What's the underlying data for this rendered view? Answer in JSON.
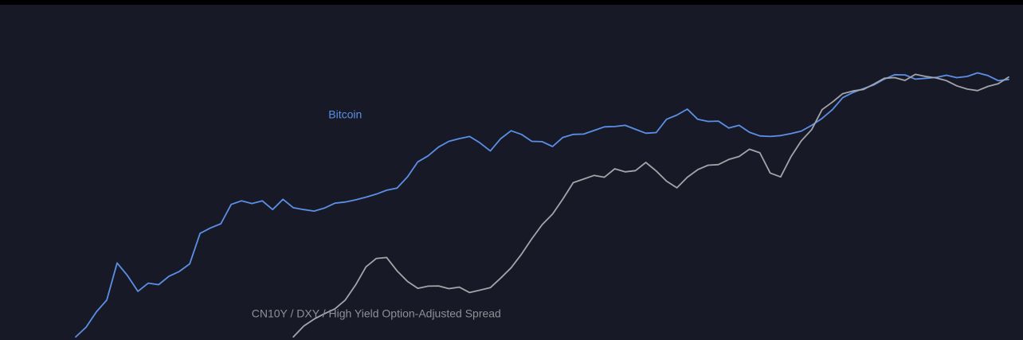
{
  "chart_data": {
    "type": "line",
    "title": "",
    "xlabel": "",
    "ylabel": "",
    "x_axis_visible": false,
    "y_axis_visible": false,
    "grid": false,
    "legend": "none",
    "background_color": "#171a26",
    "x": [
      0,
      1,
      2,
      3,
      4,
      5,
      6,
      7,
      8,
      9,
      10,
      11,
      12,
      13,
      14,
      15,
      16,
      17,
      18,
      19,
      20,
      21,
      22,
      23,
      24,
      25,
      26,
      27,
      28,
      29,
      30,
      31,
      32,
      33,
      34,
      35,
      36,
      37,
      38,
      39,
      40,
      41,
      42,
      43,
      44,
      45,
      46,
      47,
      48,
      49,
      50,
      51,
      52,
      53,
      54,
      55,
      56,
      57,
      58,
      59,
      60,
      61,
      62,
      63,
      64,
      65,
      66,
      67,
      68,
      69,
      70,
      71,
      72,
      73,
      74,
      75,
      76,
      77,
      78,
      79,
      80,
      81,
      82,
      83,
      84,
      85,
      86,
      87,
      88,
      89,
      90
    ],
    "series": [
      {
        "name": "Bitcoin",
        "color": "#5b8fe6",
        "values": [
          1.0,
          7.4,
          17.6,
          25.4,
          50.0,
          41.6,
          31.2,
          36.6,
          35.6,
          41.2,
          44.4,
          49.4,
          69.6,
          73.2,
          76.0,
          88.8,
          91.2,
          89.4,
          91.2,
          85.4,
          92.2,
          86.6,
          85.4,
          84.4,
          86.4,
          89.6,
          90.4,
          91.8,
          93.6,
          95.6,
          98.2,
          99.6,
          107.0,
          117.0,
          121.0,
          126.8,
          130.6,
          132.4,
          133.8,
          129.6,
          124.2,
          132.4,
          137.6,
          135.2,
          130.6,
          130.4,
          127.2,
          133.2,
          135.2,
          135.4,
          137.8,
          140.2,
          140.4,
          141.2,
          138.6,
          136.0,
          136.4,
          145.2,
          148.0,
          152.0,
          145.2,
          143.8,
          144.0,
          139.4,
          141.2,
          136.6,
          134.2,
          133.8,
          134.4,
          135.8,
          137.4,
          141.2,
          145.8,
          151.6,
          159.6,
          163.0,
          165.6,
          168.0,
          171.8,
          174.8,
          174.6,
          171.8,
          172.4,
          173.0,
          174.4,
          172.8,
          173.6,
          176.0,
          174.2,
          170.8,
          171.6
        ]
      },
      {
        "name": "CN10Y / DXY / High Yield Option-Adjusted Spread",
        "color": "#a3a4aa",
        "values": [
          null,
          null,
          null,
          null,
          null,
          null,
          null,
          null,
          null,
          null,
          null,
          null,
          null,
          null,
          null,
          null,
          null,
          null,
          null,
          null,
          null,
          1.0,
          8.2,
          12.8,
          16.4,
          19.6,
          25.4,
          35.4,
          47.4,
          53.0,
          53.6,
          44.8,
          37.8,
          33.2,
          34.6,
          34.8,
          33.0,
          34.0,
          30.4,
          32.0,
          33.6,
          40.0,
          46.8,
          55.8,
          66.0,
          75.4,
          82.4,
          92.4,
          103.2,
          105.6,
          108.0,
          106.8,
          112.4,
          110.4,
          111.2,
          116.6,
          111.0,
          104.2,
          99.8,
          106.8,
          111.8,
          114.8,
          115.2,
          118.6,
          120.6,
          125.4,
          123.0,
          109.6,
          107.0,
          120.4,
          131.0,
          138.4,
          151.6,
          156.6,
          162.2,
          164.0,
          165.0,
          168.6,
          172.4,
          172.8,
          171.0,
          175.0,
          173.6,
          172.6,
          170.8,
          167.4,
          165.2,
          164.2,
          167.0,
          168.8,
          173.2
        ]
      }
    ]
  }
}
